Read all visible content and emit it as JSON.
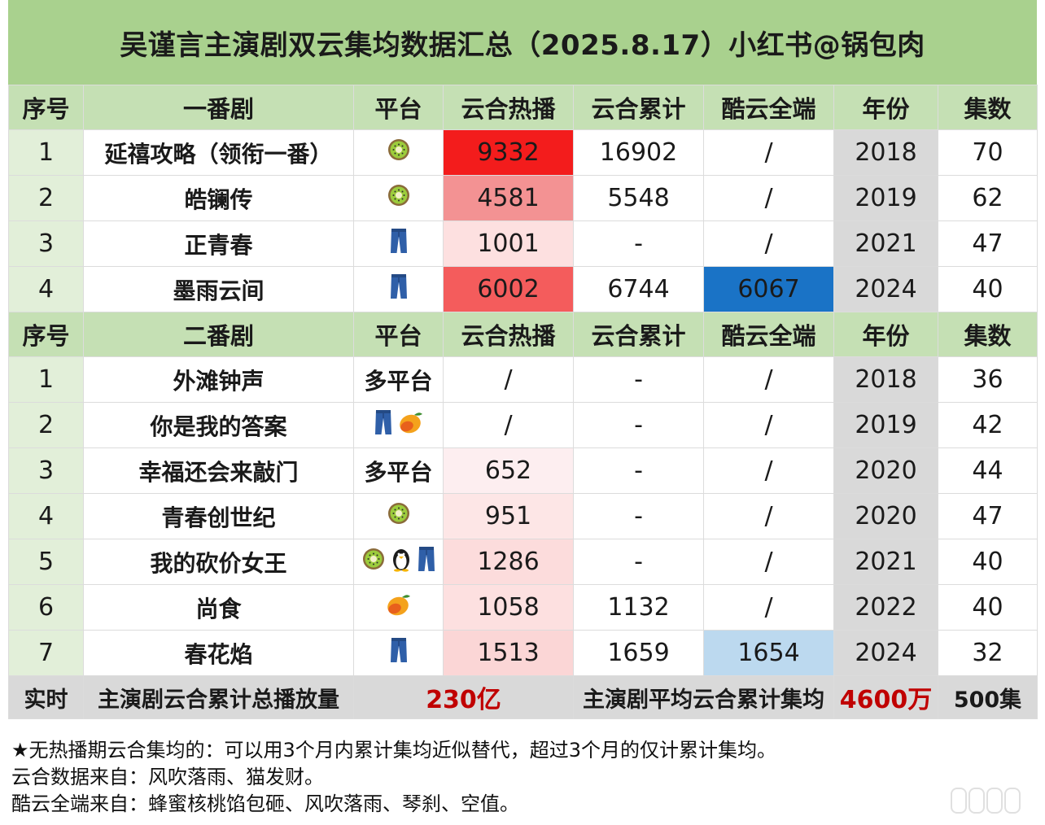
{
  "title": "吴谨言主演剧双云集均数据汇总（2025.8.17）小红书@锅包肉",
  "headers_lead": [
    "序号",
    "一番剧",
    "平台",
    "云合热播",
    "云合累计",
    "酷云全端",
    "年份",
    "集数"
  ],
  "headers_second": [
    "序号",
    "二番剧",
    "平台",
    "云合热播",
    "云合累计",
    "酷云全端",
    "年份",
    "集数"
  ],
  "lead_rows": [
    {
      "idx": "1",
      "name": "延禧攻略（领衔一番）",
      "platform": [
        "kiwi-icon"
      ],
      "hot": "9332",
      "hot_color": "#f31c1c",
      "cum": "16902",
      "kuyun": "/",
      "kuyun_color": "#ffffff",
      "year": "2018",
      "eps": "70"
    },
    {
      "idx": "2",
      "name": "皓镧传",
      "platform": [
        "kiwi-icon"
      ],
      "hot": "4581",
      "hot_color": "#f39293",
      "cum": "5548",
      "kuyun": "/",
      "kuyun_color": "#ffffff",
      "year": "2019",
      "eps": "62"
    },
    {
      "idx": "3",
      "name": "正青春",
      "platform": [
        "jeans-icon"
      ],
      "hot": "1001",
      "hot_color": "#fde0e0",
      "cum": "-",
      "kuyun": "/",
      "kuyun_color": "#ffffff",
      "year": "2021",
      "eps": "47"
    },
    {
      "idx": "4",
      "name": "墨雨云间",
      "platform": [
        "jeans-icon"
      ],
      "hot": "6002",
      "hot_color": "#f45c5c",
      "cum": "6744",
      "kuyun": "6067",
      "kuyun_color": "#1a73c6",
      "year": "2024",
      "eps": "40"
    }
  ],
  "second_rows": [
    {
      "idx": "1",
      "name": "外滩钟声",
      "platform_text": "多平台",
      "platform": [],
      "hot": "/",
      "hot_color": "#ffffff",
      "cum": "-",
      "kuyun": "/",
      "kuyun_color": "#ffffff",
      "year": "2018",
      "eps": "36"
    },
    {
      "idx": "2",
      "name": "你是我的答案",
      "platform_text": "",
      "platform": [
        "jeans-icon",
        "mango-icon"
      ],
      "hot": "/",
      "hot_color": "#ffffff",
      "cum": "-",
      "kuyun": "/",
      "kuyun_color": "#ffffff",
      "year": "2019",
      "eps": "42"
    },
    {
      "idx": "3",
      "name": "幸福还会来敲门",
      "platform_text": "多平台",
      "platform": [],
      "hot": "652",
      "hot_color": "#fdeef0",
      "cum": "-",
      "kuyun": "/",
      "kuyun_color": "#ffffff",
      "year": "2020",
      "eps": "44"
    },
    {
      "idx": "4",
      "name": "青春创世纪",
      "platform_text": "",
      "platform": [
        "kiwi-icon"
      ],
      "hot": "951",
      "hot_color": "#fde6e6",
      "cum": "-",
      "kuyun": "/",
      "kuyun_color": "#ffffff",
      "year": "2020",
      "eps": "47"
    },
    {
      "idx": "5",
      "name": "我的砍价女王",
      "platform_text": "",
      "platform": [
        "kiwi-icon",
        "penguin-icon",
        "jeans-icon"
      ],
      "hot": "1286",
      "hot_color": "#fcdcdc",
      "cum": "-",
      "kuyun": "/",
      "kuyun_color": "#ffffff",
      "year": "2021",
      "eps": "40"
    },
    {
      "idx": "6",
      "name": "尚食",
      "platform_text": "",
      "platform": [
        "mango-icon"
      ],
      "hot": "1058",
      "hot_color": "#fde0e0",
      "cum": "1132",
      "kuyun": "/",
      "kuyun_color": "#ffffff",
      "year": "2022",
      "eps": "40"
    },
    {
      "idx": "7",
      "name": "春花焰",
      "platform_text": "",
      "platform": [
        "jeans-icon"
      ],
      "hot": "1513",
      "hot_color": "#fbd6d6",
      "cum": "1659",
      "kuyun": "1654",
      "kuyun_color": "#bcd9ef",
      "year": "2024",
      "eps": "32"
    }
  ],
  "summary": {
    "label": "实时",
    "total_label": "主演剧云合累计总播放量",
    "total_value": "230亿",
    "avg_label": "主演剧平均云合累计集均",
    "avg_value": "4600万",
    "eps_total": "500集"
  },
  "notes": [
    "★无热播期云合集均的：可以用3个月内累计集均近似替代，超过3个月的仅计累计集均。",
    "云合数据来自：风吹落雨、猫发财。",
    "酷云全端来自：蜂蜜核桃馅包砸、风吹落雨、琴刹、空值。"
  ],
  "colors": {
    "title_bg": "#a9d18e",
    "header_bg": "#c5e0b4",
    "index_bg": "#e2efd9",
    "year_bg": "#d9d9d9",
    "accent_red": "#c00000"
  }
}
